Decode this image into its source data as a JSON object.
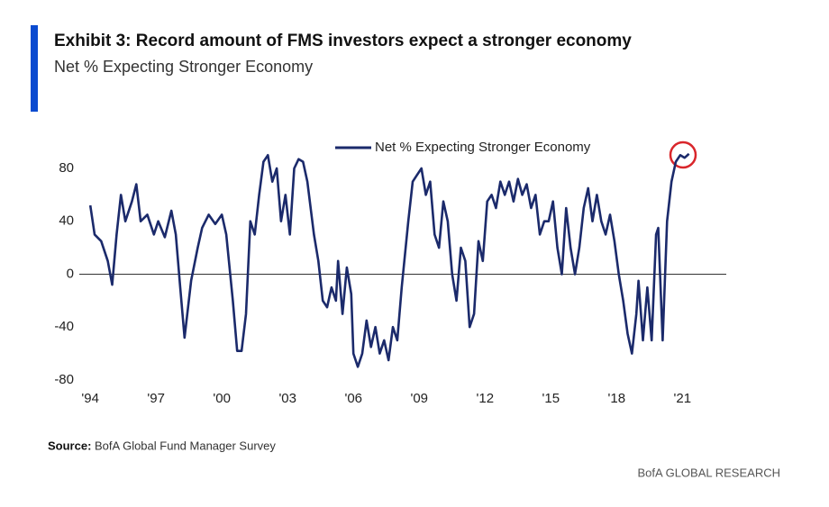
{
  "chart_data": {
    "type": "line",
    "title": "Exhibit 3: Record amount of FMS investors expect a stronger economy",
    "subtitle": "Net % Expecting Stronger Economy",
    "source_label": "Source:",
    "source": "BofA Global Fund Manager Survey",
    "footer": "BofA GLOBAL RESEARCH",
    "x": [
      1994.0,
      1994.2,
      1994.5,
      1994.8,
      1995.0,
      1995.2,
      1995.4,
      1995.6,
      1995.9,
      1996.1,
      1996.3,
      1996.6,
      1996.9,
      1997.1,
      1997.4,
      1997.7,
      1997.9,
      1998.1,
      1998.3,
      1998.6,
      1998.9,
      1999.1,
      1999.4,
      1999.7,
      2000.0,
      2000.2,
      2000.5,
      2000.7,
      2000.9,
      2001.1,
      2001.3,
      2001.5,
      2001.7,
      2001.9,
      2002.1,
      2002.3,
      2002.5,
      2002.7,
      2002.9,
      2003.1,
      2003.3,
      2003.5,
      2003.7,
      2003.9,
      2004.2,
      2004.4,
      2004.6,
      2004.8,
      2005.0,
      2005.2,
      2005.3,
      2005.5,
      2005.7,
      2005.9,
      2006.0,
      2006.2,
      2006.4,
      2006.6,
      2006.8,
      2007.0,
      2007.2,
      2007.4,
      2007.6,
      2007.8,
      2008.0,
      2008.2,
      2008.5,
      2008.7,
      2008.9,
      2009.1,
      2009.3,
      2009.5,
      2009.7,
      2009.9,
      2010.1,
      2010.3,
      2010.5,
      2010.7,
      2010.9,
      2011.1,
      2011.3,
      2011.5,
      2011.7,
      2011.9,
      2012.1,
      2012.3,
      2012.5,
      2012.7,
      2012.9,
      2013.1,
      2013.3,
      2013.5,
      2013.7,
      2013.9,
      2014.1,
      2014.3,
      2014.5,
      2014.7,
      2014.9,
      2015.1,
      2015.3,
      2015.5,
      2015.7,
      2015.9,
      2016.1,
      2016.3,
      2016.5,
      2016.7,
      2016.9,
      2017.1,
      2017.3,
      2017.5,
      2017.7,
      2017.9,
      2018.1,
      2018.3,
      2018.5,
      2018.7,
      2018.9,
      2019.0,
      2019.2,
      2019.4,
      2019.6,
      2019.8,
      2019.9,
      2020.1,
      2020.3,
      2020.5,
      2020.7,
      2020.9,
      2021.1,
      2021.3
    ],
    "series": [
      {
        "name": "Net % Expecting Stronger Economy",
        "color": "#1b2a6b",
        "values": [
          52,
          30,
          25,
          10,
          -8,
          30,
          60,
          40,
          55,
          68,
          40,
          45,
          30,
          40,
          28,
          48,
          30,
          -10,
          -48,
          -5,
          20,
          35,
          45,
          38,
          45,
          30,
          -20,
          -58,
          -58,
          -30,
          40,
          30,
          60,
          85,
          90,
          70,
          80,
          40,
          60,
          30,
          80,
          87,
          85,
          70,
          30,
          10,
          -20,
          -25,
          -10,
          -20,
          10,
          -30,
          5,
          -15,
          -60,
          -70,
          -60,
          -35,
          -55,
          -40,
          -60,
          -50,
          -65,
          -40,
          -50,
          -10,
          40,
          70,
          75,
          80,
          60,
          70,
          30,
          20,
          55,
          40,
          0,
          -20,
          20,
          10,
          -40,
          -30,
          25,
          10,
          55,
          60,
          50,
          70,
          60,
          70,
          55,
          72,
          60,
          68,
          50,
          60,
          30,
          40,
          40,
          55,
          20,
          0,
          50,
          20,
          0,
          20,
          50,
          65,
          40,
          60,
          40,
          30,
          45,
          25,
          0,
          -20,
          -45,
          -60,
          -30,
          -5,
          -50,
          -10,
          -50,
          30,
          35,
          -50,
          40,
          70,
          85,
          90,
          88,
          91
        ]
      }
    ],
    "xlim": [
      1993.5,
      2023
    ],
    "xticks": [
      {
        "value": 1994,
        "label": "'94"
      },
      {
        "value": 1997,
        "label": "'97"
      },
      {
        "value": 2000,
        "label": "'00"
      },
      {
        "value": 2003,
        "label": "'03"
      },
      {
        "value": 2006,
        "label": "'06"
      },
      {
        "value": 2009,
        "label": "'09"
      },
      {
        "value": 2012,
        "label": "'12"
      },
      {
        "value": 2015,
        "label": "'15"
      },
      {
        "value": 2018,
        "label": "'18"
      },
      {
        "value": 2021,
        "label": "'21"
      }
    ],
    "ylim": [
      -80,
      100
    ],
    "yticks": [
      80,
      40,
      0,
      -40,
      -80
    ],
    "zero_line": true,
    "legend": "top"
  }
}
